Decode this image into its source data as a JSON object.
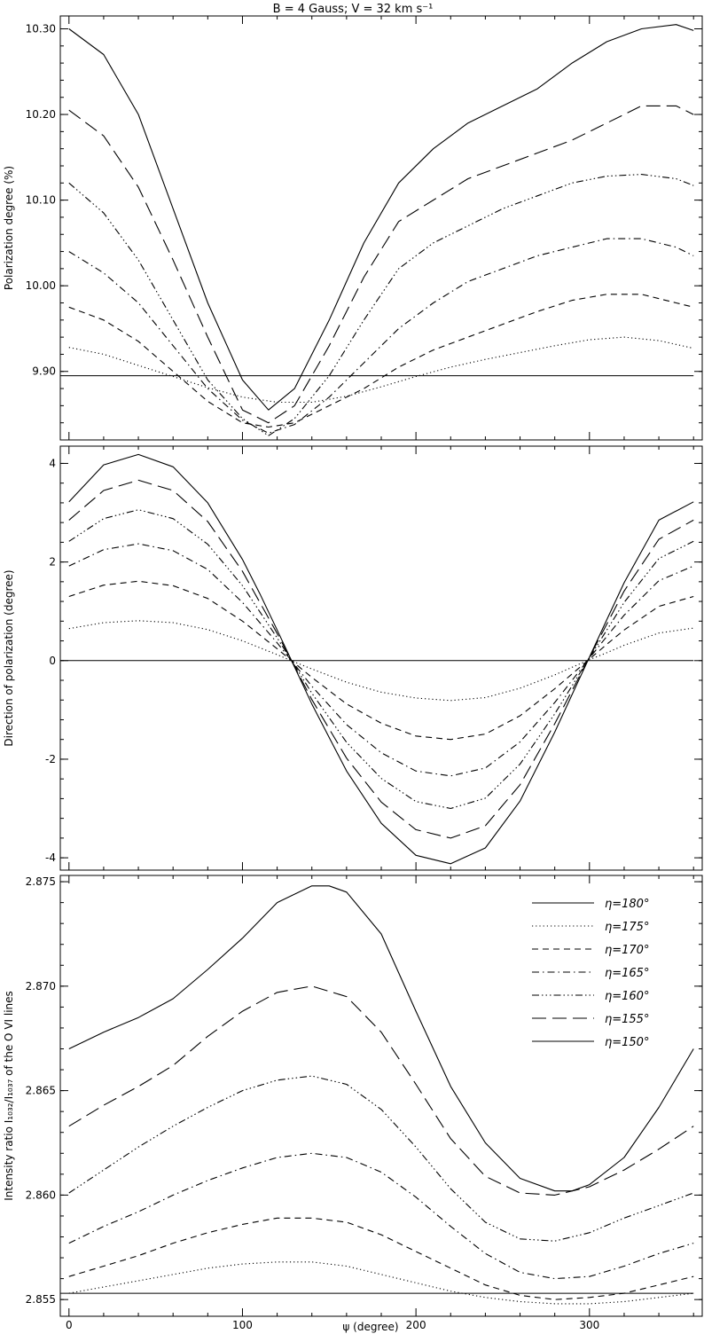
{
  "figure": {
    "title": "B = 4 Gauss; V = 32 km s⁻¹",
    "x_label": "ψ (degree)"
  },
  "legend": {
    "placement": "top-right of bottom panel",
    "entries": [
      {
        "label": "η=180°",
        "style": "solid"
      },
      {
        "label": "η=175°",
        "style": "dotted"
      },
      {
        "label": "η=170°",
        "style": "dashed"
      },
      {
        "label": "η=165°",
        "style": "dashdot"
      },
      {
        "label": "η=160°",
        "style": "dashdotdotdot"
      },
      {
        "label": "η=155°",
        "style": "longdash"
      },
      {
        "label": "η=150°",
        "style": "solid"
      }
    ]
  },
  "chart_data": [
    {
      "type": "line",
      "ylabel": "Polarization degree (%)",
      "xlabel": "",
      "xlim": [
        -5,
        365
      ],
      "ylim": [
        9.82,
        10.315
      ],
      "xticks": [
        0,
        100,
        200,
        300
      ],
      "xtick_labels": [
        "",
        "",
        "",
        ""
      ],
      "yticks": [
        9.9,
        10.0,
        10.1,
        10.2,
        10.3
      ],
      "ytick_labels": [
        "9.90",
        "10.00",
        "10.10",
        "10.20",
        "10.30"
      ],
      "reference_line": 9.895,
      "series": [
        {
          "style": "solid",
          "x": [
            0,
            20,
            40,
            60,
            80,
            100,
            115,
            130,
            150,
            170,
            190,
            210,
            230,
            250,
            270,
            290,
            310,
            330,
            350,
            360
          ],
          "y": [
            10.3,
            10.27,
            10.2,
            10.09,
            9.98,
            9.89,
            9.855,
            9.88,
            9.96,
            10.05,
            10.12,
            10.16,
            10.19,
            10.21,
            10.23,
            10.26,
            10.285,
            10.3,
            10.305,
            10.298
          ]
        },
        {
          "style": "dotted",
          "x": [
            0,
            20,
            40,
            60,
            80,
            100,
            120,
            140,
            160,
            180,
            200,
            220,
            240,
            260,
            280,
            300,
            320,
            340,
            360
          ],
          "y": [
            9.928,
            9.92,
            9.907,
            9.894,
            9.881,
            9.87,
            9.864,
            9.864,
            9.871,
            9.882,
            9.894,
            9.905,
            9.914,
            9.922,
            9.93,
            9.937,
            9.94,
            9.936,
            9.927
          ]
        },
        {
          "style": "dashed",
          "x": [
            0,
            20,
            40,
            60,
            80,
            100,
            115,
            130,
            150,
            170,
            190,
            210,
            230,
            250,
            270,
            290,
            310,
            330,
            350,
            360
          ],
          "y": [
            9.975,
            9.96,
            9.935,
            9.9,
            9.865,
            9.84,
            9.835,
            9.84,
            9.86,
            9.88,
            9.905,
            9.925,
            9.94,
            9.955,
            9.97,
            9.983,
            9.99,
            9.99,
            9.98,
            9.975
          ]
        },
        {
          "style": "dashdot",
          "x": [
            0,
            20,
            40,
            60,
            80,
            100,
            115,
            130,
            150,
            170,
            190,
            210,
            230,
            250,
            270,
            290,
            310,
            330,
            350,
            360
          ],
          "y": [
            10.04,
            10.015,
            9.98,
            9.93,
            9.88,
            9.843,
            9.828,
            9.838,
            9.87,
            9.91,
            9.95,
            9.98,
            10.005,
            10.02,
            10.035,
            10.045,
            10.055,
            10.055,
            10.045,
            10.035
          ]
        },
        {
          "style": "dashdotdotdot",
          "x": [
            0,
            20,
            40,
            60,
            80,
            100,
            115,
            130,
            150,
            170,
            190,
            210,
            230,
            250,
            270,
            290,
            310,
            330,
            350,
            360
          ],
          "y": [
            10.12,
            10.085,
            10.03,
            9.96,
            9.89,
            9.845,
            9.825,
            9.845,
            9.895,
            9.96,
            10.02,
            10.05,
            10.07,
            10.09,
            10.105,
            10.12,
            10.128,
            10.13,
            10.125,
            10.117
          ]
        },
        {
          "style": "longdash",
          "x": [
            0,
            20,
            40,
            60,
            80,
            100,
            115,
            130,
            150,
            170,
            190,
            210,
            230,
            250,
            270,
            290,
            310,
            330,
            350,
            360
          ],
          "y": [
            10.205,
            10.175,
            10.115,
            10.03,
            9.94,
            9.855,
            9.84,
            9.86,
            9.93,
            10.01,
            10.075,
            10.1,
            10.125,
            10.14,
            10.155,
            10.17,
            10.19,
            10.21,
            10.21,
            10.2
          ]
        }
      ]
    },
    {
      "type": "line",
      "ylabel": "Direction of polarization (degree)",
      "xlabel": "",
      "xlim": [
        -5,
        365
      ],
      "ylim": [
        -4.25,
        4.35
      ],
      "xticks": [
        0,
        100,
        200,
        300
      ],
      "xtick_labels": [
        "",
        "",
        "",
        ""
      ],
      "yticks": [
        -4,
        -2,
        0,
        2,
        4
      ],
      "ytick_labels": [
        "-4",
        "-2",
        "0",
        "2",
        "4"
      ],
      "reference_line": 0,
      "series": [
        {
          "style": "solid",
          "x": [
            0,
            20,
            40,
            60,
            80,
            100,
            110,
            120,
            130,
            140,
            160,
            180,
            200,
            220,
            240,
            260,
            280,
            290,
            300,
            310,
            320,
            340,
            360
          ],
          "y": [
            3.22,
            3.97,
            4.18,
            3.93,
            3.2,
            2.05,
            1.36,
            0.62,
            -0.13,
            -0.88,
            -2.24,
            -3.3,
            -3.95,
            -4.12,
            -3.8,
            -2.85,
            -1.45,
            -0.69,
            0.07,
            0.83,
            1.58,
            2.85,
            3.22
          ]
        },
        {
          "style": "dotted",
          "x": [
            0,
            20,
            40,
            60,
            80,
            100,
            120,
            130,
            140,
            160,
            180,
            200,
            220,
            240,
            260,
            280,
            300,
            310,
            320,
            340,
            360
          ],
          "y": [
            0.65,
            0.77,
            0.81,
            0.77,
            0.63,
            0.4,
            0.12,
            -0.03,
            -0.17,
            -0.44,
            -0.64,
            -0.76,
            -0.81,
            -0.75,
            -0.56,
            -0.29,
            0.02,
            0.16,
            0.31,
            0.56,
            0.66
          ]
        },
        {
          "style": "dashed",
          "x": [
            0,
            20,
            40,
            60,
            80,
            100,
            120,
            130,
            140,
            160,
            180,
            200,
            220,
            240,
            260,
            280,
            300,
            310,
            320,
            340,
            360
          ],
          "y": [
            1.3,
            1.53,
            1.61,
            1.52,
            1.26,
            0.8,
            0.24,
            -0.05,
            -0.34,
            -0.88,
            -1.27,
            -1.53,
            -1.6,
            -1.49,
            -1.12,
            -0.57,
            0.03,
            0.33,
            0.62,
            1.1,
            1.3
          ]
        },
        {
          "style": "dashdot",
          "x": [
            0,
            20,
            40,
            60,
            80,
            100,
            120,
            130,
            140,
            160,
            180,
            200,
            220,
            240,
            260,
            280,
            300,
            310,
            320,
            340,
            360
          ],
          "y": [
            1.92,
            2.25,
            2.37,
            2.23,
            1.85,
            1.18,
            0.36,
            -0.08,
            -0.52,
            -1.3,
            -1.87,
            -2.24,
            -2.34,
            -2.18,
            -1.65,
            -0.85,
            0.05,
            0.49,
            0.92,
            1.62,
            1.92
          ]
        },
        {
          "style": "dashdotdotdot",
          "x": [
            0,
            20,
            40,
            60,
            80,
            100,
            120,
            130,
            140,
            160,
            180,
            200,
            220,
            240,
            260,
            280,
            300,
            310,
            320,
            340,
            360
          ],
          "y": [
            2.42,
            2.88,
            3.06,
            2.88,
            2.36,
            1.52,
            0.46,
            -0.1,
            -0.66,
            -1.66,
            -2.39,
            -2.86,
            -3.0,
            -2.79,
            -2.1,
            -1.08,
            0.06,
            0.62,
            1.18,
            2.07,
            2.42
          ]
        },
        {
          "style": "longdash",
          "x": [
            0,
            20,
            40,
            60,
            80,
            100,
            120,
            130,
            140,
            160,
            180,
            200,
            220,
            240,
            260,
            280,
            300,
            310,
            320,
            340,
            360
          ],
          "y": [
            2.85,
            3.45,
            3.66,
            3.45,
            2.82,
            1.81,
            0.55,
            -0.12,
            -0.79,
            -1.98,
            -2.87,
            -3.43,
            -3.6,
            -3.35,
            -2.52,
            -1.28,
            0.07,
            0.74,
            1.41,
            2.46,
            2.85
          ]
        }
      ]
    },
    {
      "type": "line",
      "ylabel": "Intensity ratio I₁₀₃₂/I₁₀₃₇ of the O VI lines",
      "xlabel": "ψ (degree)",
      "xlim": [
        -5,
        365
      ],
      "ylim": [
        2.8542,
        2.8753
      ],
      "xticks": [
        0,
        100,
        200,
        300
      ],
      "xtick_labels": [
        "0",
        "100",
        "200",
        "300"
      ],
      "yticks": [
        2.855,
        2.86,
        2.865,
        2.87,
        2.875
      ],
      "ytick_labels": [
        "2.855",
        "2.860",
        "2.865",
        "2.870",
        "2.875"
      ],
      "reference_line": 2.8553,
      "series": [
        {
          "style": "solid",
          "x": [
            0,
            20,
            40,
            60,
            80,
            100,
            120,
            140,
            150,
            160,
            180,
            200,
            220,
            240,
            260,
            280,
            290,
            300,
            320,
            340,
            360
          ],
          "y": [
            2.867,
            2.8678,
            2.8685,
            2.8694,
            2.8708,
            2.8723,
            2.874,
            2.8748,
            2.8748,
            2.8745,
            2.8725,
            2.8688,
            2.8652,
            2.8625,
            2.8608,
            2.8602,
            2.8602,
            2.8605,
            2.8618,
            2.8642,
            2.867
          ]
        },
        {
          "style": "dotted",
          "x": [
            0,
            20,
            40,
            60,
            80,
            100,
            120,
            140,
            160,
            180,
            200,
            220,
            240,
            260,
            280,
            300,
            320,
            340,
            360
          ],
          "y": [
            2.8553,
            2.8556,
            2.8559,
            2.8562,
            2.8565,
            2.8567,
            2.8568,
            2.8568,
            2.8566,
            2.8562,
            2.8558,
            2.8554,
            2.8551,
            2.8549,
            2.8548,
            2.8548,
            2.8549,
            2.8551,
            2.8553
          ]
        },
        {
          "style": "dashed",
          "x": [
            0,
            20,
            40,
            60,
            80,
            100,
            120,
            140,
            160,
            180,
            200,
            220,
            240,
            260,
            280,
            300,
            320,
            340,
            360
          ],
          "y": [
            2.8561,
            2.8566,
            2.8571,
            2.8577,
            2.8582,
            2.8586,
            2.8589,
            2.8589,
            2.8587,
            2.8581,
            2.8573,
            2.8565,
            2.8557,
            2.8552,
            2.855,
            2.8551,
            2.8553,
            2.8557,
            2.8561
          ]
        },
        {
          "style": "dashdot",
          "x": [
            0,
            20,
            40,
            60,
            80,
            100,
            120,
            140,
            160,
            180,
            200,
            220,
            240,
            260,
            280,
            300,
            320,
            340,
            360
          ],
          "y": [
            2.8577,
            2.8585,
            2.8592,
            2.86,
            2.8607,
            2.8613,
            2.8618,
            2.862,
            2.8618,
            2.8611,
            2.8599,
            2.8585,
            2.8572,
            2.8563,
            2.856,
            2.8561,
            2.8566,
            2.8572,
            2.8577
          ]
        },
        {
          "style": "dashdotdotdot",
          "x": [
            0,
            20,
            40,
            60,
            80,
            100,
            120,
            140,
            160,
            180,
            200,
            220,
            240,
            260,
            280,
            300,
            320,
            340,
            360
          ],
          "y": [
            2.8601,
            2.8612,
            2.8623,
            2.8633,
            2.8642,
            2.865,
            2.8655,
            2.8657,
            2.8653,
            2.8641,
            2.8623,
            2.8603,
            2.8587,
            2.8579,
            2.8578,
            2.8582,
            2.8589,
            2.8595,
            2.8601
          ]
        },
        {
          "style": "longdash",
          "x": [
            0,
            20,
            40,
            60,
            80,
            100,
            120,
            140,
            160,
            180,
            200,
            220,
            240,
            260,
            280,
            300,
            320,
            340,
            360
          ],
          "y": [
            2.8633,
            2.8643,
            2.8652,
            2.8662,
            2.8676,
            2.8688,
            2.8697,
            2.87,
            2.8695,
            2.8678,
            2.8653,
            2.8627,
            2.8609,
            2.8601,
            2.86,
            2.8604,
            2.8612,
            2.8622,
            2.8633
          ]
        }
      ]
    }
  ]
}
